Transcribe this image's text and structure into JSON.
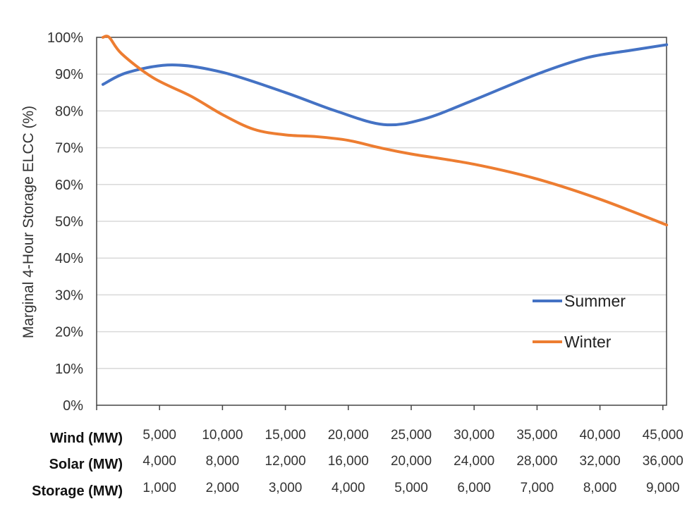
{
  "chart_data": {
    "type": "line",
    "title": "",
    "ylabel": "Marginal 4-Hour Storage ELCC (%)",
    "ylim": [
      0,
      100
    ],
    "yticks": [
      "0%",
      "10%",
      "20%",
      "30%",
      "40%",
      "50%",
      "60%",
      "70%",
      "80%",
      "90%",
      "100%"
    ],
    "xlim_wind_mw": [
      0,
      45000
    ],
    "x_rows": [
      {
        "label": "Wind  (MW)",
        "values": [
          "5,000",
          "10,000",
          "15,000",
          "20,000",
          "25,000",
          "30,000",
          "35,000",
          "40,000",
          "45,000"
        ]
      },
      {
        "label": "Solar (MW)",
        "values": [
          "4,000",
          "8,000",
          "12,000",
          "16,000",
          "20,000",
          "24,000",
          "28,000",
          "32,000",
          "36,000"
        ]
      },
      {
        "label": "Storage (MW)",
        "values": [
          "1,000",
          "2,000",
          "3,000",
          "4,000",
          "5,000",
          "6,000",
          "7,000",
          "8,000",
          "9,000"
        ]
      }
    ],
    "grid": true,
    "legend_position": "bottom-right",
    "series": [
      {
        "name": "Summer",
        "color": "#4472C4",
        "points": [
          [
            500,
            87.2
          ],
          [
            2500,
            90.5
          ],
          [
            6000,
            92.5
          ],
          [
            10000,
            90.5
          ],
          [
            15000,
            85
          ],
          [
            19000,
            80
          ],
          [
            22800,
            76.3
          ],
          [
            26000,
            77.8
          ],
          [
            30000,
            83
          ],
          [
            35000,
            90
          ],
          [
            39000,
            94.5
          ],
          [
            42500,
            96.5
          ],
          [
            45300,
            98
          ]
        ]
      },
      {
        "name": "Winter",
        "color": "#ED7D31",
        "points": [
          [
            500,
            100
          ],
          [
            1000,
            100
          ],
          [
            2000,
            95.5
          ],
          [
            4500,
            89
          ],
          [
            7500,
            84
          ],
          [
            10000,
            79
          ],
          [
            12500,
            75
          ],
          [
            15000,
            73.5
          ],
          [
            17500,
            73
          ],
          [
            20000,
            72
          ],
          [
            22500,
            70
          ],
          [
            25000,
            68.3
          ],
          [
            30000,
            65.5
          ],
          [
            35000,
            61.5
          ],
          [
            40000,
            56
          ],
          [
            45300,
            49
          ]
        ]
      }
    ]
  }
}
